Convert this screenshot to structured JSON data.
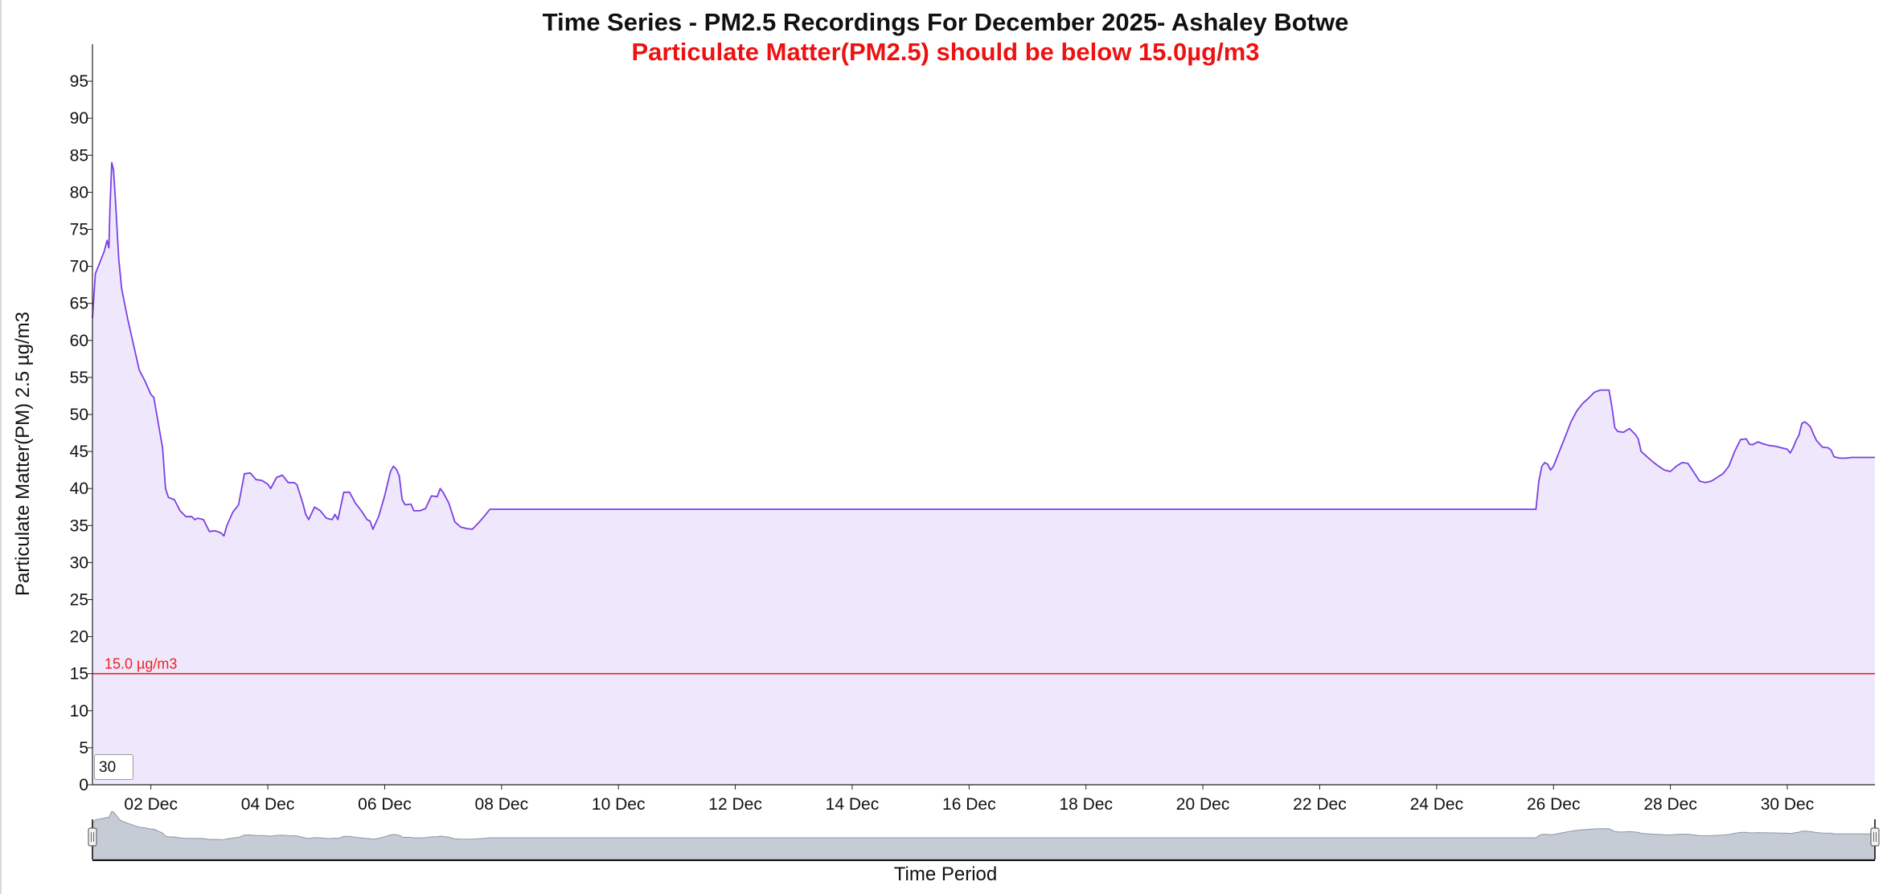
{
  "chart_data": {
    "type": "area",
    "title": "Time Series - PM2.5 Recordings For December 2025- Ashaley Botwe",
    "subtitle": "Particulate Matter(PM2.5) should be below 15.0µg/m3",
    "xlabel": "Time Period",
    "ylabel": "Particulate Matter(PM) 2.5 µg/m3",
    "x_start": "2025-12-01",
    "x_end": "2025-12-31 12:00",
    "xlim_days": [
      1.0,
      31.5
    ],
    "ylim": [
      0,
      100
    ],
    "yticks": [
      0,
      5,
      10,
      15,
      20,
      25,
      30,
      35,
      40,
      45,
      50,
      55,
      60,
      65,
      70,
      75,
      80,
      85,
      90,
      95
    ],
    "xtick_labels": [
      "02 Dec",
      "04 Dec",
      "06 Dec",
      "08 Dec",
      "10 Dec",
      "12 Dec",
      "14 Dec",
      "16 Dec",
      "18 Dec",
      "20 Dec",
      "22 Dec",
      "24 Dec",
      "26 Dec",
      "28 Dec",
      "30 Dec"
    ],
    "xtick_days": [
      2,
      4,
      6,
      8,
      10,
      12,
      14,
      16,
      18,
      20,
      22,
      24,
      26,
      28,
      30
    ],
    "threshold": {
      "value": 15.0,
      "label": "15.0 µg/m3",
      "color": "#ee2222"
    },
    "series": [
      {
        "line_color": "#7b3fe4",
        "fill_color": "#efe8fd",
        "points": [
          [
            1.0,
            63
          ],
          [
            1.05,
            69
          ],
          [
            1.1,
            70
          ],
          [
            1.15,
            71
          ],
          [
            1.2,
            72
          ],
          [
            1.25,
            73.5
          ],
          [
            1.28,
            72.5
          ],
          [
            1.3,
            78
          ],
          [
            1.33,
            84
          ],
          [
            1.36,
            83
          ],
          [
            1.4,
            78
          ],
          [
            1.45,
            71
          ],
          [
            1.5,
            67
          ],
          [
            1.6,
            63
          ],
          [
            1.7,
            59.5
          ],
          [
            1.8,
            56
          ],
          [
            1.9,
            54.5
          ],
          [
            2.0,
            52.7
          ],
          [
            2.05,
            52.3
          ],
          [
            2.1,
            50
          ],
          [
            2.2,
            45.5
          ],
          [
            2.25,
            40
          ],
          [
            2.3,
            38.8
          ],
          [
            2.4,
            38.5
          ],
          [
            2.5,
            37
          ],
          [
            2.6,
            36.2
          ],
          [
            2.7,
            36.2
          ],
          [
            2.75,
            35.8
          ],
          [
            2.8,
            36
          ],
          [
            2.9,
            35.8
          ],
          [
            2.95,
            35
          ],
          [
            3.0,
            34.2
          ],
          [
            3.1,
            34.3
          ],
          [
            3.2,
            34
          ],
          [
            3.25,
            33.6
          ],
          [
            3.3,
            35
          ],
          [
            3.4,
            36.8
          ],
          [
            3.5,
            37.8
          ],
          [
            3.6,
            42
          ],
          [
            3.7,
            42.1
          ],
          [
            3.8,
            41.2
          ],
          [
            3.9,
            41.1
          ],
          [
            4.0,
            40.6
          ],
          [
            4.05,
            40
          ],
          [
            4.15,
            41.5
          ],
          [
            4.25,
            41.8
          ],
          [
            4.35,
            40.8
          ],
          [
            4.45,
            40.8
          ],
          [
            4.5,
            40.5
          ],
          [
            4.6,
            38
          ],
          [
            4.65,
            36.5
          ],
          [
            4.7,
            35.8
          ],
          [
            4.8,
            37.5
          ],
          [
            4.9,
            37
          ],
          [
            5.0,
            36
          ],
          [
            5.1,
            35.8
          ],
          [
            5.15,
            36.5
          ],
          [
            5.2,
            35.8
          ],
          [
            5.3,
            39.5
          ],
          [
            5.4,
            39.5
          ],
          [
            5.5,
            38
          ],
          [
            5.6,
            37
          ],
          [
            5.7,
            35.8
          ],
          [
            5.75,
            35.6
          ],
          [
            5.8,
            34.5
          ],
          [
            5.9,
            36.3
          ],
          [
            6.0,
            39
          ],
          [
            6.1,
            42.3
          ],
          [
            6.15,
            43
          ],
          [
            6.2,
            42.6
          ],
          [
            6.25,
            41.7
          ],
          [
            6.3,
            38.5
          ],
          [
            6.35,
            37.8
          ],
          [
            6.45,
            37.9
          ],
          [
            6.5,
            37
          ],
          [
            6.6,
            37
          ],
          [
            6.7,
            37.3
          ],
          [
            6.8,
            39
          ],
          [
            6.9,
            38.9
          ],
          [
            6.95,
            40
          ],
          [
            7.0,
            39.5
          ],
          [
            7.1,
            38
          ],
          [
            7.2,
            35.5
          ],
          [
            7.3,
            34.8
          ],
          [
            7.4,
            34.6
          ],
          [
            7.5,
            34.5
          ],
          [
            7.6,
            35.3
          ],
          [
            7.7,
            36.2
          ],
          [
            7.8,
            37.2
          ],
          [
            25.7,
            37.2
          ],
          [
            25.75,
            41
          ],
          [
            25.8,
            43
          ],
          [
            25.85,
            43.5
          ],
          [
            25.9,
            43.3
          ],
          [
            25.95,
            42.5
          ],
          [
            26.0,
            43
          ],
          [
            26.1,
            45
          ],
          [
            26.2,
            47
          ],
          [
            26.3,
            49
          ],
          [
            26.4,
            50.5
          ],
          [
            26.5,
            51.5
          ],
          [
            26.6,
            52.2
          ],
          [
            26.7,
            53
          ],
          [
            26.8,
            53.3
          ],
          [
            26.9,
            53.3
          ],
          [
            26.95,
            53.3
          ],
          [
            27.0,
            51
          ],
          [
            27.05,
            48.2
          ],
          [
            27.1,
            47.7
          ],
          [
            27.2,
            47.6
          ],
          [
            27.3,
            48.1
          ],
          [
            27.4,
            47.3
          ],
          [
            27.45,
            46.7
          ],
          [
            27.5,
            45
          ],
          [
            27.6,
            44.3
          ],
          [
            27.7,
            43.6
          ],
          [
            27.8,
            43
          ],
          [
            27.9,
            42.5
          ],
          [
            28.0,
            42.3
          ],
          [
            28.1,
            43
          ],
          [
            28.2,
            43.5
          ],
          [
            28.3,
            43.4
          ],
          [
            28.4,
            42.2
          ],
          [
            28.5,
            41
          ],
          [
            28.6,
            40.8
          ],
          [
            28.7,
            41
          ],
          [
            28.8,
            41.5
          ],
          [
            28.9,
            42
          ],
          [
            29.0,
            43
          ],
          [
            29.1,
            45
          ],
          [
            29.2,
            46.6
          ],
          [
            29.3,
            46.7
          ],
          [
            29.35,
            46
          ],
          [
            29.4,
            45.9
          ],
          [
            29.5,
            46.3
          ],
          [
            29.6,
            46
          ],
          [
            29.7,
            45.8
          ],
          [
            29.8,
            45.7
          ],
          [
            29.9,
            45.5
          ],
          [
            30.0,
            45.3
          ],
          [
            30.05,
            44.8
          ],
          [
            30.1,
            45.5
          ],
          [
            30.15,
            46.5
          ],
          [
            30.2,
            47.2
          ],
          [
            30.25,
            48.8
          ],
          [
            30.3,
            49
          ],
          [
            30.35,
            48.7
          ],
          [
            30.4,
            48.3
          ],
          [
            30.45,
            47.3
          ],
          [
            30.5,
            46.5
          ],
          [
            30.6,
            45.6
          ],
          [
            30.7,
            45.5
          ],
          [
            30.75,
            45.2
          ],
          [
            30.8,
            44.3
          ],
          [
            30.9,
            44.1
          ],
          [
            31.0,
            44.1
          ],
          [
            31.1,
            44.2
          ],
          [
            31.5,
            44.2
          ]
        ]
      }
    ]
  },
  "controls": {
    "period_input_value": "30"
  }
}
